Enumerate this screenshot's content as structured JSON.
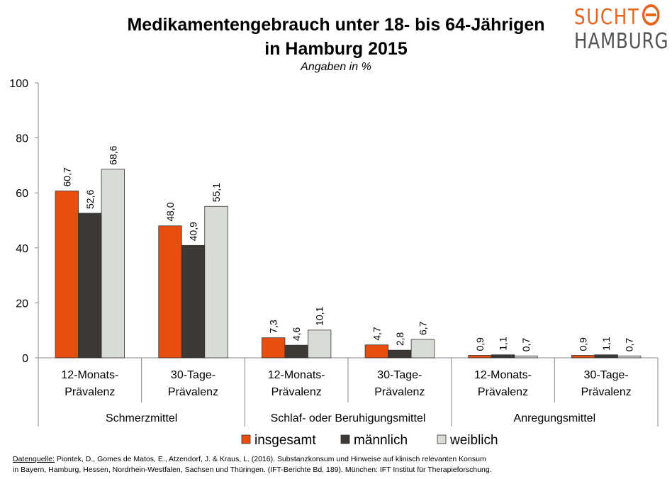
{
  "title_line1": "Medikamentengebrauch unter 18- bis 64-Jährigen",
  "title_line2": "in Hamburg 2015",
  "subtitle": "Angaben in %",
  "logo": {
    "line1": "SUCHT",
    "line2": "HAMBURG"
  },
  "source": {
    "label": "Datenquelle:",
    "line1": " Piontek, D., Gomes de Matos, E., Atzendorf, J. & Kraus, L. (2016). Substanzkonsum und Hinweise auf klinisch relevanten Konsum",
    "line2": "in Bayern, Hamburg, Hessen, Nordrhein-Westfalen, Sachsen und Thüringen. (IFT-Berichte Bd. 189). München: IFT Institut für Therapieforschung."
  },
  "colors": {
    "insgesamt": "#e84e0f",
    "maennlich": "#3c3835",
    "weiblich": "#d9dbd6"
  },
  "chart_data": {
    "type": "bar",
    "categories": [
      {
        "label_line1": "12-Monats-",
        "label_line2": "Prävalenz",
        "group": "Schmerzmittel"
      },
      {
        "label_line1": "30-Tage-",
        "label_line2": "Prävalenz",
        "group": "Schmerzmittel"
      },
      {
        "label_line1": "12-Monats-",
        "label_line2": "Prävalenz",
        "group": "Schlaf- oder Beruhigungsmittel"
      },
      {
        "label_line1": "30-Tage-",
        "label_line2": "Prävalenz",
        "group": "Schlaf- oder Beruhigungsmittel"
      },
      {
        "label_line1": "12-Monats-",
        "label_line2": "Prävalenz",
        "group": "Anregungsmittel"
      },
      {
        "label_line1": "30-Tage-",
        "label_line2": "Prävalenz",
        "group": "Anregungsmittel"
      }
    ],
    "groups": [
      "Schmerzmittel",
      "Schlaf- oder Beruhigungsmittel",
      "Anregungsmittel"
    ],
    "series": [
      {
        "name": "insgesamt",
        "values": [
          60.7,
          48.0,
          7.3,
          4.7,
          0.9,
          0.9
        ],
        "labels": [
          "60,7",
          "48,0",
          "7,3",
          "4,7",
          "0,9",
          "0,9"
        ]
      },
      {
        "name": "männlich",
        "values": [
          52.6,
          40.9,
          4.6,
          2.8,
          1.1,
          1.1
        ],
        "labels": [
          "52,6",
          "40,9",
          "4,6",
          "2,8",
          "1,1",
          "1,1"
        ]
      },
      {
        "name": "weiblich",
        "values": [
          68.6,
          55.1,
          10.1,
          6.7,
          0.7,
          0.7
        ],
        "labels": [
          "68,6",
          "55,1",
          "10,1",
          "6,7",
          "0,7",
          "0,7"
        ]
      }
    ],
    "ylim": [
      0,
      100
    ],
    "yticks": [
      0,
      20,
      40,
      60,
      80,
      100
    ],
    "grid": false,
    "legend": "bottom"
  }
}
